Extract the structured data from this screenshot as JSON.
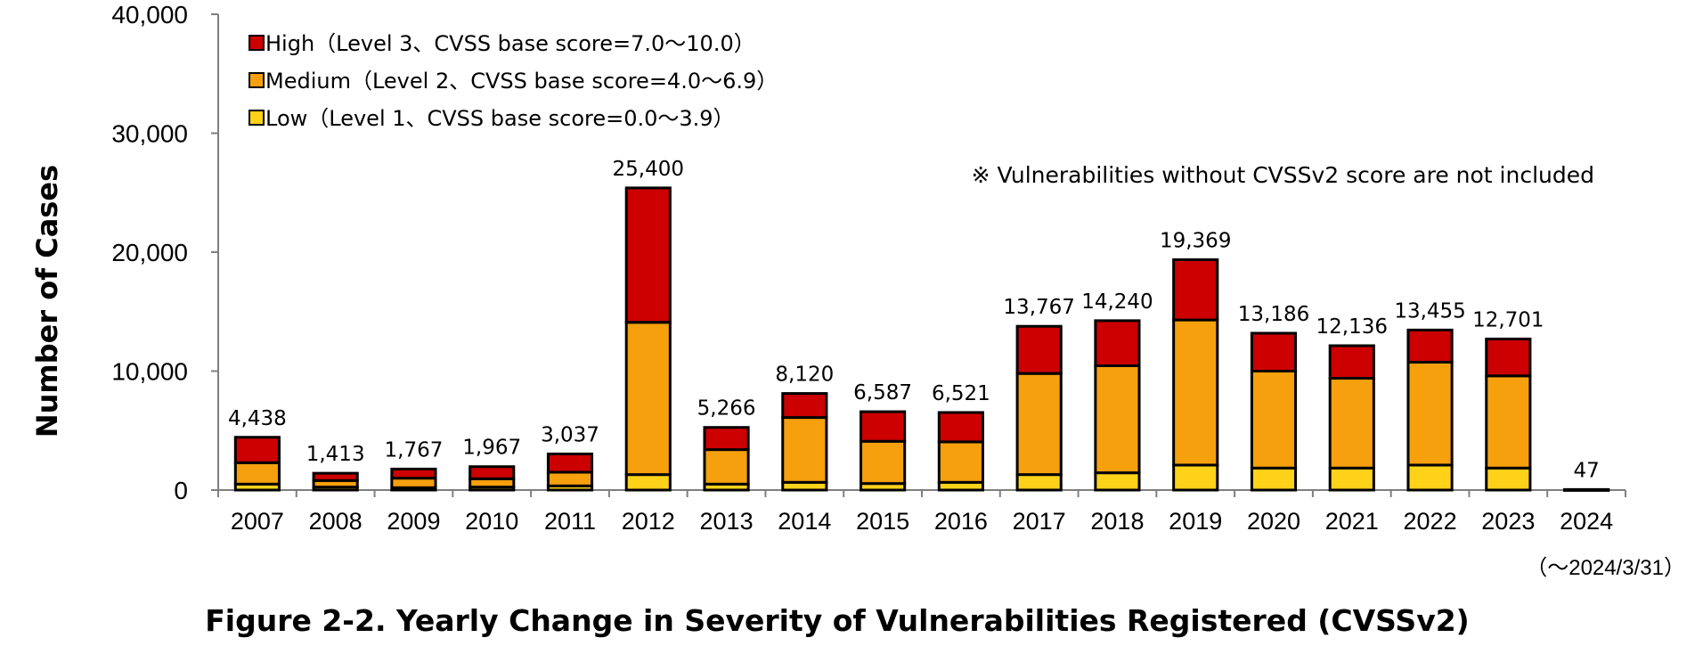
{
  "figure_caption": "Figure 2-2. Yearly Change in Severity of Vulnerabilities Registered (CVSSv2)",
  "note": "※ Vulnerabilities without CVSSv2 score are not included",
  "last_category_sublabel": "（～2024/3/31）",
  "colors": {
    "High": "#cc0000",
    "Medium": "#f5a00c",
    "Low": "#ffd21a"
  },
  "chart_data": {
    "type": "bar",
    "stacked": true,
    "title": "",
    "xlabel": "",
    "ylabel": "Number of Cases",
    "ylim": [
      0,
      40000
    ],
    "yticks": [
      0,
      10000,
      20000,
      30000,
      40000
    ],
    "ytick_labels": [
      "0",
      "10,000",
      "20,000",
      "30,000",
      "40,000"
    ],
    "grid": false,
    "legend_position": "top-left",
    "categories": [
      "2007",
      "2008",
      "2009",
      "2010",
      "2011",
      "2012",
      "2013",
      "2014",
      "2015",
      "2016",
      "2017",
      "2018",
      "2019",
      "2020",
      "2021",
      "2022",
      "2023",
      "2024"
    ],
    "series": [
      {
        "name": "Low（Level 1、CVSS base score=0.0～3.9）",
        "key": "Low",
        "values": [
          500,
          250,
          200,
          250,
          350,
          1300,
          500,
          650,
          550,
          650,
          1300,
          1450,
          2100,
          1850,
          1850,
          2100,
          1850,
          5
        ]
      },
      {
        "name": "Medium（Level 2、CVSS base score=4.0～6.9）",
        "key": "Medium",
        "values": [
          1800,
          550,
          800,
          700,
          1150,
          12800,
          2900,
          5450,
          3550,
          3400,
          8500,
          9000,
          12200,
          8150,
          7550,
          8650,
          7750,
          30
        ]
      },
      {
        "name": "High（Level 3、CVSS base score=7.0～10.0）",
        "key": "High",
        "values": [
          2138,
          613,
          767,
          1017,
          1537,
          11300,
          1866,
          2020,
          2487,
          2471,
          3967,
          3790,
          5069,
          3186,
          2736,
          2705,
          3101,
          12
        ]
      }
    ],
    "totals": [
      4438,
      1413,
      1767,
      1967,
      3037,
      25400,
      5266,
      8120,
      6587,
      6521,
      13767,
      14240,
      19369,
      13186,
      12136,
      13455,
      12701,
      47
    ],
    "total_labels": [
      "4,438",
      "1,413",
      "1,767",
      "1,967",
      "3,037",
      "25,400",
      "5,266",
      "8,120",
      "6,587",
      "6,521",
      "13,767",
      "14,240",
      "19,369",
      "13,186",
      "12,136",
      "13,455",
      "12,701",
      "47"
    ]
  }
}
